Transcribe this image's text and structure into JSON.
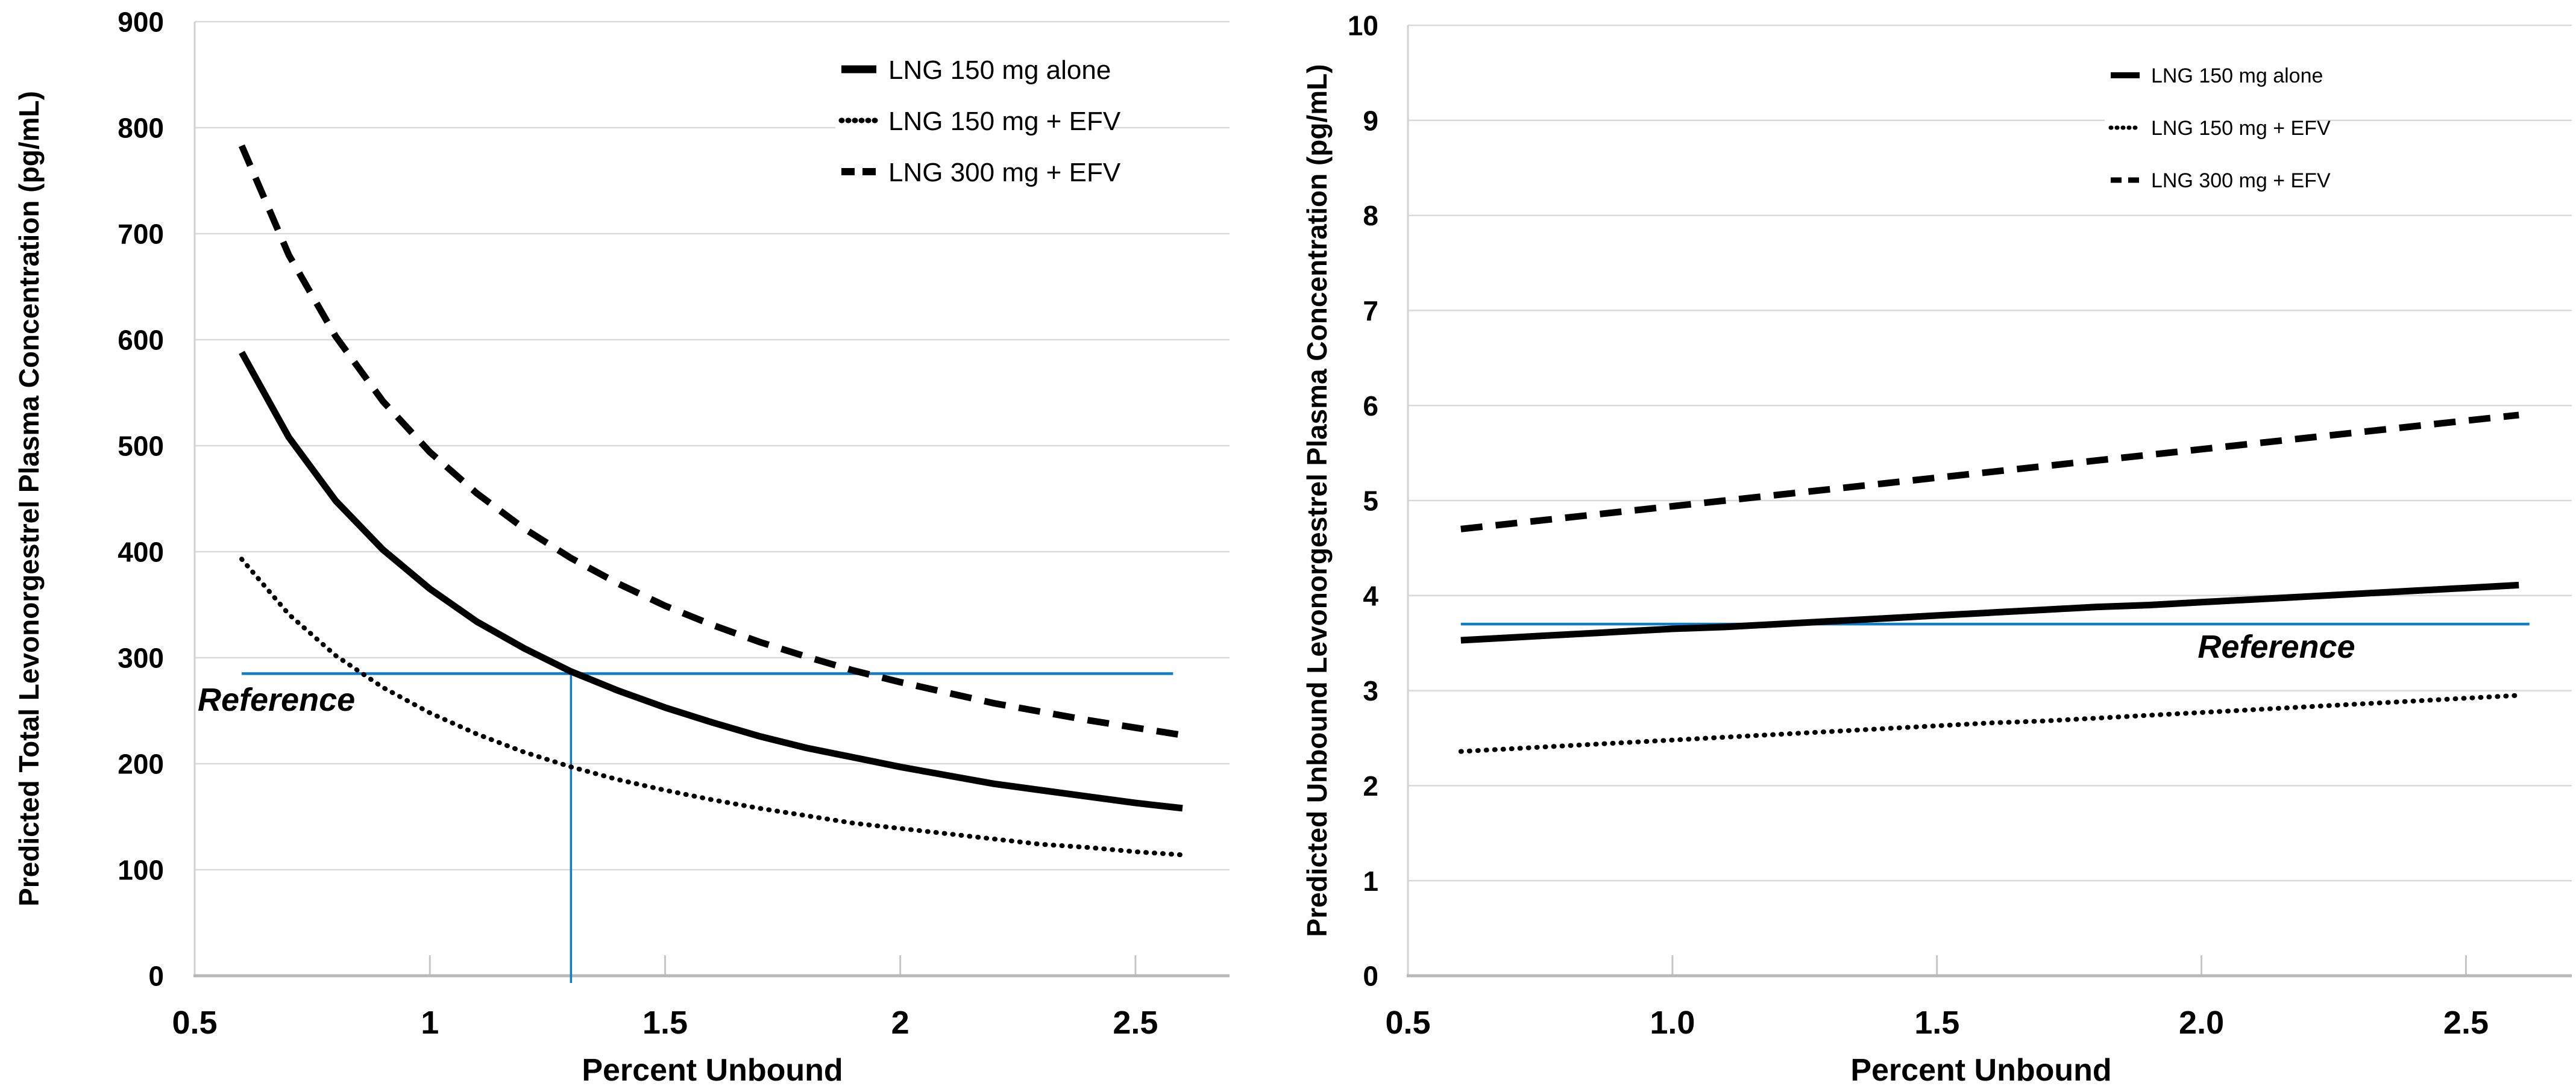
{
  "page": {
    "background": "#ffffff"
  },
  "colors": {
    "series_line": "#000000",
    "reference": "#0e7dca",
    "gridline": "#d9d9d9",
    "axis_line": "#b8b8b8",
    "tick_mark": "#c6c6c6",
    "plot_border": "#d0d0d0",
    "text": "#000000",
    "legend_background": "#ffffff"
  },
  "chart_data": [
    {
      "type": "line",
      "name": "total-concentration",
      "title": "",
      "xlabel": "Percent Unbound",
      "ylabel": "Predicted Total Levonorgestrel Plasma Concentration (pg/mL)",
      "xlim": [
        0.5,
        2.7
      ],
      "ylim": [
        0,
        900
      ],
      "grid": "horizontal",
      "legend_position": "top-right",
      "x_ticks": [
        {
          "v": 0.5,
          "label": "0.5"
        },
        {
          "v": 1.0,
          "label": "1"
        },
        {
          "v": 1.5,
          "label": "1.5"
        },
        {
          "v": 2.0,
          "label": "2"
        },
        {
          "v": 2.5,
          "label": "2.5"
        }
      ],
      "y_ticks": [
        {
          "v": 0,
          "label": "0"
        },
        {
          "v": 100,
          "label": "100"
        },
        {
          "v": 200,
          "label": "200"
        },
        {
          "v": 300,
          "label": "300"
        },
        {
          "v": 400,
          "label": "400"
        },
        {
          "v": 500,
          "label": "500"
        },
        {
          "v": 600,
          "label": "600"
        },
        {
          "v": 700,
          "label": "700"
        },
        {
          "v": 800,
          "label": "800"
        },
        {
          "v": 900,
          "label": "900"
        }
      ],
      "x": [
        0.6,
        0.7,
        0.8,
        0.9,
        1.0,
        1.1,
        1.2,
        1.3,
        1.4,
        1.5,
        1.6,
        1.7,
        1.8,
        1.9,
        2.0,
        2.1,
        2.2,
        2.3,
        2.4,
        2.5,
        2.6
      ],
      "series": [
        {
          "name": "LNG 150 mg alone",
          "style": "solid",
          "values": [
            588,
            508,
            448,
            402,
            365,
            334,
            309,
            287,
            269,
            253,
            239,
            226,
            215,
            206,
            197,
            189,
            181,
            175,
            169,
            163,
            158
          ]
        },
        {
          "name": "LNG 150 mg + EFV",
          "style": "dotted",
          "values": [
            393,
            341,
            302,
            272,
            248,
            228,
            211,
            197,
            185,
            175,
            166,
            158,
            151,
            144,
            139,
            134,
            129,
            124,
            121,
            117,
            114
          ]
        },
        {
          "name": "LNG 300 mg + EFV",
          "style": "dashed",
          "values": [
            783,
            680,
            603,
            542,
            494,
            455,
            422,
            394,
            370,
            349,
            331,
            315,
            301,
            288,
            277,
            267,
            257,
            249,
            241,
            234,
            227
          ]
        }
      ],
      "reference": {
        "label": "Reference",
        "y": 285,
        "x_start": 0.6,
        "x_end": 2.58,
        "vertical_x": 1.3
      }
    },
    {
      "type": "line",
      "name": "unbound-concentration",
      "title": "",
      "xlabel": "Percent Unbound",
      "ylabel": "Predicted Unbound Levonorgestrel Plasma Concentration (pg/mL)",
      "xlim": [
        0.5,
        2.7
      ],
      "ylim": [
        0,
        10
      ],
      "grid": "horizontal",
      "legend_position": "top-right",
      "x_ticks": [
        {
          "v": 0.5,
          "label": "0.5"
        },
        {
          "v": 1.0,
          "label": "1.0"
        },
        {
          "v": 1.5,
          "label": "1.5"
        },
        {
          "v": 2.0,
          "label": "2.0"
        },
        {
          "v": 2.5,
          "label": "2.5"
        }
      ],
      "y_ticks": [
        {
          "v": 0,
          "label": "0"
        },
        {
          "v": 1,
          "label": "1"
        },
        {
          "v": 2,
          "label": "2"
        },
        {
          "v": 3,
          "label": "3"
        },
        {
          "v": 4,
          "label": "4"
        },
        {
          "v": 5,
          "label": "5"
        },
        {
          "v": 6,
          "label": "6"
        },
        {
          "v": 7,
          "label": "7"
        },
        {
          "v": 8,
          "label": "8"
        },
        {
          "v": 9,
          "label": "9"
        },
        {
          "v": 10,
          "label": "10"
        }
      ],
      "x": [
        0.6,
        0.7,
        0.8,
        0.9,
        1.0,
        1.1,
        1.2,
        1.3,
        1.4,
        1.5,
        1.6,
        1.7,
        1.8,
        1.9,
        2.0,
        2.1,
        2.2,
        2.3,
        2.4,
        2.5,
        2.6
      ],
      "series": [
        {
          "name": "LNG 150 mg alone",
          "style": "solid",
          "values": [
            3.53,
            3.56,
            3.59,
            3.62,
            3.65,
            3.67,
            3.7,
            3.73,
            3.76,
            3.79,
            3.82,
            3.85,
            3.88,
            3.9,
            3.93,
            3.96,
            3.99,
            4.02,
            4.05,
            4.08,
            4.11
          ]
        },
        {
          "name": "LNG 150 mg + EFV",
          "style": "dotted",
          "values": [
            2.36,
            2.39,
            2.42,
            2.45,
            2.48,
            2.51,
            2.54,
            2.57,
            2.6,
            2.63,
            2.66,
            2.68,
            2.71,
            2.74,
            2.77,
            2.8,
            2.83,
            2.86,
            2.89,
            2.92,
            2.95
          ]
        },
        {
          "name": "LNG 300 mg + EFV",
          "style": "dashed",
          "values": [
            4.7,
            4.76,
            4.82,
            4.88,
            4.94,
            5.0,
            5.06,
            5.12,
            5.18,
            5.24,
            5.3,
            5.36,
            5.42,
            5.48,
            5.54,
            5.6,
            5.66,
            5.72,
            5.78,
            5.84,
            5.9
          ]
        }
      ],
      "reference": {
        "label": "Reference",
        "y": 3.7,
        "x_start": 0.6,
        "x_end": 2.62
      }
    }
  ]
}
